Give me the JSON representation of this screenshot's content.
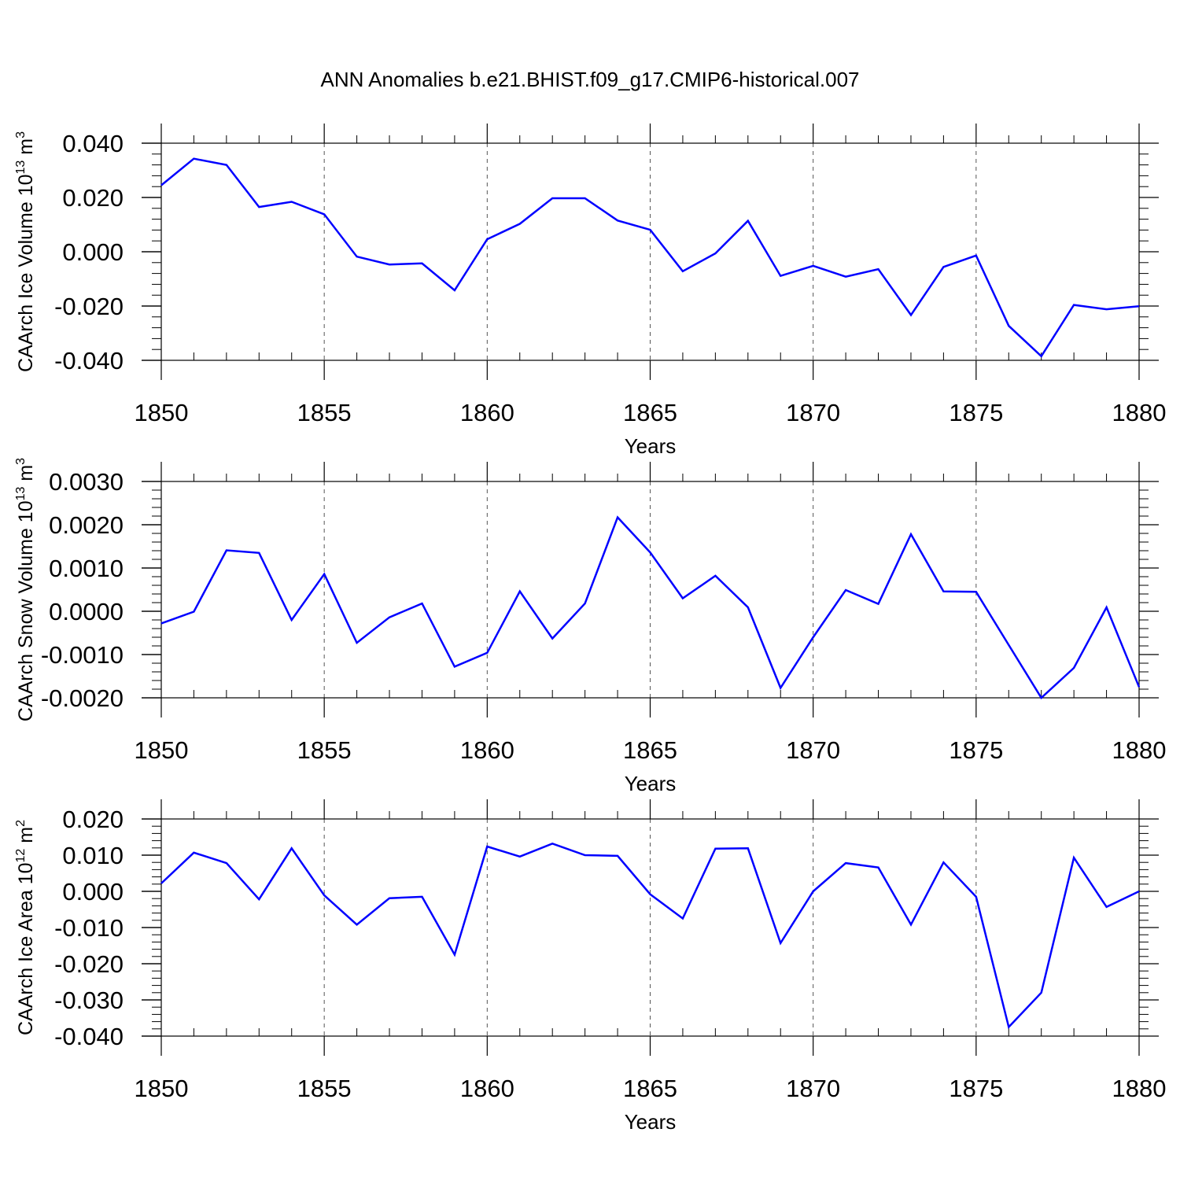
{
  "title": "ANN Anomalies b.e21.BHIST.f09_g17.CMIP6-historical.007",
  "chart_data": [
    {
      "type": "line",
      "xlabel": "Years",
      "ylabel": {
        "text": "CAArch Ice Volume 10",
        "sup": "13",
        "unit": " m",
        "unit_sup": "3"
      },
      "xlim": [
        1850,
        1880
      ],
      "ylim": [
        -0.04,
        0.04
      ],
      "yticks": [
        "0.040",
        "0.020",
        "0.000",
        "-0.020",
        "-0.040"
      ],
      "ytick_values": [
        0.04,
        0.02,
        0.0,
        -0.02,
        -0.04
      ],
      "xticks": [
        "1850",
        "1855",
        "1860",
        "1865",
        "1870",
        "1875",
        "1880"
      ],
      "xtick_values": [
        1850,
        1855,
        1860,
        1865,
        1870,
        1875,
        1880
      ],
      "color": "#0000ff",
      "x": [
        1850,
        1851,
        1852,
        1853,
        1854,
        1855,
        1856,
        1857,
        1858,
        1859,
        1860,
        1861,
        1862,
        1863,
        1864,
        1865,
        1866,
        1867,
        1868,
        1869,
        1870,
        1871,
        1872,
        1873,
        1874,
        1875,
        1876,
        1877,
        1878,
        1879,
        1880
      ],
      "y": [
        0.0245,
        0.0343,
        0.032,
        0.0165,
        0.0184,
        0.0138,
        -0.0018,
        -0.0047,
        -0.0043,
        -0.0142,
        0.0046,
        0.0103,
        0.0197,
        0.0197,
        0.0115,
        0.0081,
        -0.0072,
        -0.0006,
        0.0114,
        -0.0089,
        -0.0052,
        -0.0092,
        -0.0064,
        -0.0233,
        -0.0056,
        -0.0014,
        -0.0273,
        -0.0385,
        -0.0196,
        -0.0212,
        -0.0201
      ]
    },
    {
      "type": "line",
      "xlabel": "Years",
      "ylabel": {
        "text": "CAArch Snow Volume 10",
        "sup": "13",
        "unit": " m",
        "unit_sup": "3"
      },
      "xlim": [
        1850,
        1880
      ],
      "ylim": [
        -0.002,
        0.003
      ],
      "yticks": [
        "0.0030",
        "0.0020",
        "0.0010",
        "0.0000",
        "-0.0010",
        "-0.0020"
      ],
      "ytick_values": [
        0.003,
        0.002,
        0.001,
        0.0,
        -0.001,
        -0.002
      ],
      "xticks": [
        "1850",
        "1855",
        "1860",
        "1865",
        "1870",
        "1875",
        "1880"
      ],
      "xtick_values": [
        1850,
        1855,
        1860,
        1865,
        1870,
        1875,
        1880
      ],
      "color": "#0000ff",
      "x": [
        1850,
        1851,
        1852,
        1853,
        1854,
        1855,
        1856,
        1857,
        1858,
        1859,
        1860,
        1861,
        1862,
        1863,
        1864,
        1865,
        1866,
        1867,
        1868,
        1869,
        1870,
        1871,
        1872,
        1873,
        1874,
        1875,
        1876,
        1877,
        1878,
        1879,
        1880
      ],
      "y": [
        -0.00028,
        -1e-05,
        0.00141,
        0.00135,
        -0.0002,
        0.00086,
        -0.00073,
        -0.00014,
        0.00018,
        -0.00128,
        -0.00096,
        0.00046,
        -0.00063,
        0.00018,
        0.00217,
        0.00136,
        0.0003,
        0.00082,
        9e-05,
        -0.00177,
        -0.0006,
        0.00049,
        0.00017,
        0.00178,
        0.00046,
        0.00045,
        -0.00078,
        -0.002,
        -0.00131,
        9e-05,
        -0.00175
      ]
    },
    {
      "type": "line",
      "xlabel": "Years",
      "ylabel": {
        "text": "CAArch Ice Area 10",
        "sup": "12",
        "unit": " m",
        "unit_sup": "2"
      },
      "xlim": [
        1850,
        1880
      ],
      "ylim": [
        -0.04,
        0.02
      ],
      "yticks": [
        "0.020",
        "0.010",
        "0.000",
        "-0.010",
        "-0.020",
        "-0.030",
        "-0.040"
      ],
      "ytick_values": [
        0.02,
        0.01,
        0.0,
        -0.01,
        -0.02,
        -0.03,
        -0.04
      ],
      "xticks": [
        "1850",
        "1855",
        "1860",
        "1865",
        "1870",
        "1875",
        "1880"
      ],
      "xtick_values": [
        1850,
        1855,
        1860,
        1865,
        1870,
        1875,
        1880
      ],
      "color": "#0000ff",
      "x": [
        1850,
        1851,
        1852,
        1853,
        1854,
        1855,
        1856,
        1857,
        1858,
        1859,
        1860,
        1861,
        1862,
        1863,
        1864,
        1865,
        1866,
        1867,
        1868,
        1869,
        1870,
        1871,
        1872,
        1873,
        1874,
        1875,
        1876,
        1877,
        1878,
        1879,
        1880
      ],
      "y": [
        0.0022,
        0.0107,
        0.0078,
        -0.0022,
        0.0119,
        -0.0011,
        -0.0092,
        -0.0019,
        -0.0015,
        -0.0175,
        0.0124,
        0.0096,
        0.0132,
        0.01,
        0.0098,
        -0.0008,
        -0.0075,
        0.0118,
        0.0119,
        -0.0143,
        0.0,
        0.0078,
        0.0066,
        -0.0092,
        0.008,
        -0.0015,
        -0.0375,
        -0.028,
        0.0093,
        -0.0043,
        0.0
      ]
    }
  ]
}
